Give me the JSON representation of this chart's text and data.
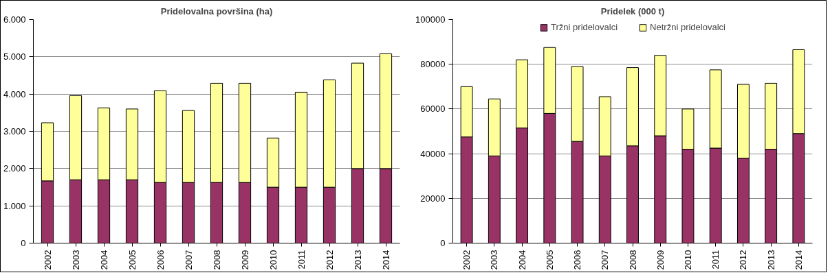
{
  "chart_data": [
    {
      "type": "bar",
      "title": "Pridelovalna površina (ha)",
      "stacked": true,
      "categories": [
        "2002",
        "2003",
        "2004",
        "2005",
        "2006",
        "2007",
        "2008",
        "2009",
        "2010",
        "2011",
        "2012",
        "2013",
        "2014"
      ],
      "series": [
        {
          "color": "#993366",
          "values": [
            1670,
            1700,
            1700,
            1700,
            1630,
            1630,
            1630,
            1630,
            1500,
            1500,
            1500,
            2000,
            2000
          ]
        },
        {
          "color": "#ffff99",
          "values": [
            1560,
            2260,
            1930,
            1900,
            2460,
            1930,
            2660,
            2660,
            1320,
            2550,
            2880,
            2830,
            3080
          ]
        }
      ],
      "ylim": [
        0,
        6000
      ],
      "yticks": [
        0,
        {
          "value": 1000,
          "label": "1.000"
        },
        {
          "value": 2000,
          "label": "2.000"
        },
        {
          "value": 3000,
          "label": "3.000"
        },
        {
          "value": 4000,
          "label": "4.000"
        },
        {
          "value": 5000,
          "label": "5.000"
        },
        {
          "value": 6000,
          "label": "6.000"
        }
      ],
      "grid": "y",
      "legend": false
    },
    {
      "type": "bar",
      "title": "Pridelek (000 t)",
      "stacked": true,
      "categories": [
        "2002",
        "2003",
        "2004",
        "2005",
        "2006",
        "2007",
        "2008",
        "2009",
        "2010",
        "2011",
        "2012",
        "2013",
        "2014"
      ],
      "series": [
        {
          "name": "Tržni pridelovalci",
          "color": "#993366",
          "values": [
            47500,
            39000,
            51500,
            58000,
            45500,
            39000,
            43500,
            48000,
            42000,
            42500,
            38000,
            42000,
            49000
          ]
        },
        {
          "name": "Netržni pridelovalci",
          "color": "#ffff99",
          "values": [
            22500,
            25500,
            30500,
            29500,
            33500,
            26500,
            35000,
            36000,
            18000,
            35000,
            33000,
            29500,
            37500
          ]
        }
      ],
      "ylim": [
        0,
        100000
      ],
      "yticks": [
        0,
        20000,
        40000,
        60000,
        80000,
        100000
      ],
      "grid": "y",
      "legend": "top"
    }
  ]
}
